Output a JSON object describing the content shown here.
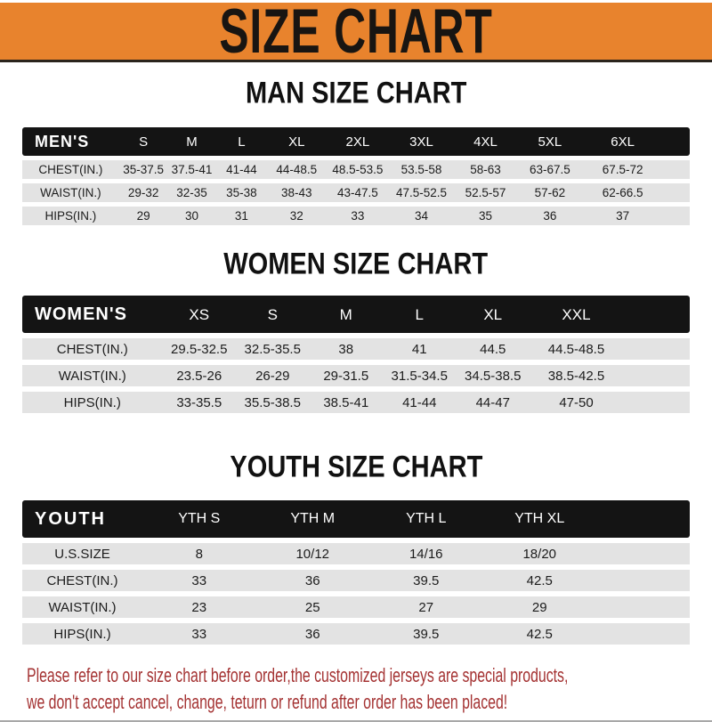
{
  "banner": {
    "title": "SIZE CHART"
  },
  "colors": {
    "banner_bg": "#E8832D",
    "banner_text": "#181512",
    "header_bar": "#141414",
    "header_text": "#FFFFFF",
    "row_bg": "#E3E3E3",
    "body_text": "#1C1C1C",
    "notice_text": "#A43232"
  },
  "chart_data": [
    {
      "type": "table",
      "title": "MAN SIZE CHART",
      "header": [
        "MEN'S",
        "S",
        "M",
        "L",
        "XL",
        "2XL",
        "3XL",
        "4XL",
        "5XL",
        "6XL"
      ],
      "rows": [
        [
          "CHEST(IN.)",
          "35-37.5",
          "37.5-41",
          "41-44",
          "44-48.5",
          "48.5-53.5",
          "53.5-58",
          "58-63",
          "63-67.5",
          "67.5-72"
        ],
        [
          "WAIST(IN.)",
          "29-32",
          "32-35",
          "35-38",
          "38-43",
          "43-47.5",
          "47.5-52.5",
          "52.5-57",
          "57-62",
          "62-66.5"
        ],
        [
          "HIPS(IN.)",
          "29",
          "30",
          "31",
          "32",
          "33",
          "34",
          "35",
          "36",
          "37"
        ]
      ]
    },
    {
      "type": "table",
      "title": "WOMEN SIZE CHART",
      "header": [
        "WOMEN'S",
        "XS",
        "S",
        "M",
        "L",
        "XL",
        "XXL"
      ],
      "rows": [
        [
          "CHEST(IN.)",
          "29.5-32.5",
          "32.5-35.5",
          "38",
          "41",
          "44.5",
          "44.5-48.5"
        ],
        [
          "WAIST(IN.)",
          "23.5-26",
          "26-29",
          "29-31.5",
          "31.5-34.5",
          "34.5-38.5",
          "38.5-42.5"
        ],
        [
          "HIPS(IN.)",
          "33-35.5",
          "35.5-38.5",
          "38.5-41",
          "41-44",
          "44-47",
          "47-50"
        ]
      ]
    },
    {
      "type": "table",
      "title": "YOUTH SIZE CHART",
      "header": [
        "YOUTH",
        "YTH S",
        "YTH M",
        "YTH L",
        "YTH XL"
      ],
      "rows": [
        [
          "U.S.SIZE",
          "8",
          "10/12",
          "14/16",
          "18/20"
        ],
        [
          "CHEST(IN.)",
          "33",
          "36",
          "39.5",
          "42.5"
        ],
        [
          "WAIST(IN.)",
          "23",
          "25",
          "27",
          "29"
        ],
        [
          "HIPS(IN.)",
          "33",
          "36",
          "39.5",
          "42.5"
        ]
      ]
    }
  ],
  "footer": {
    "line1": "Please refer to our size chart before order,the customized jerseys are special products,",
    "line2": "we don't accept cancel, change, teturn or refund after order has been placed!"
  }
}
